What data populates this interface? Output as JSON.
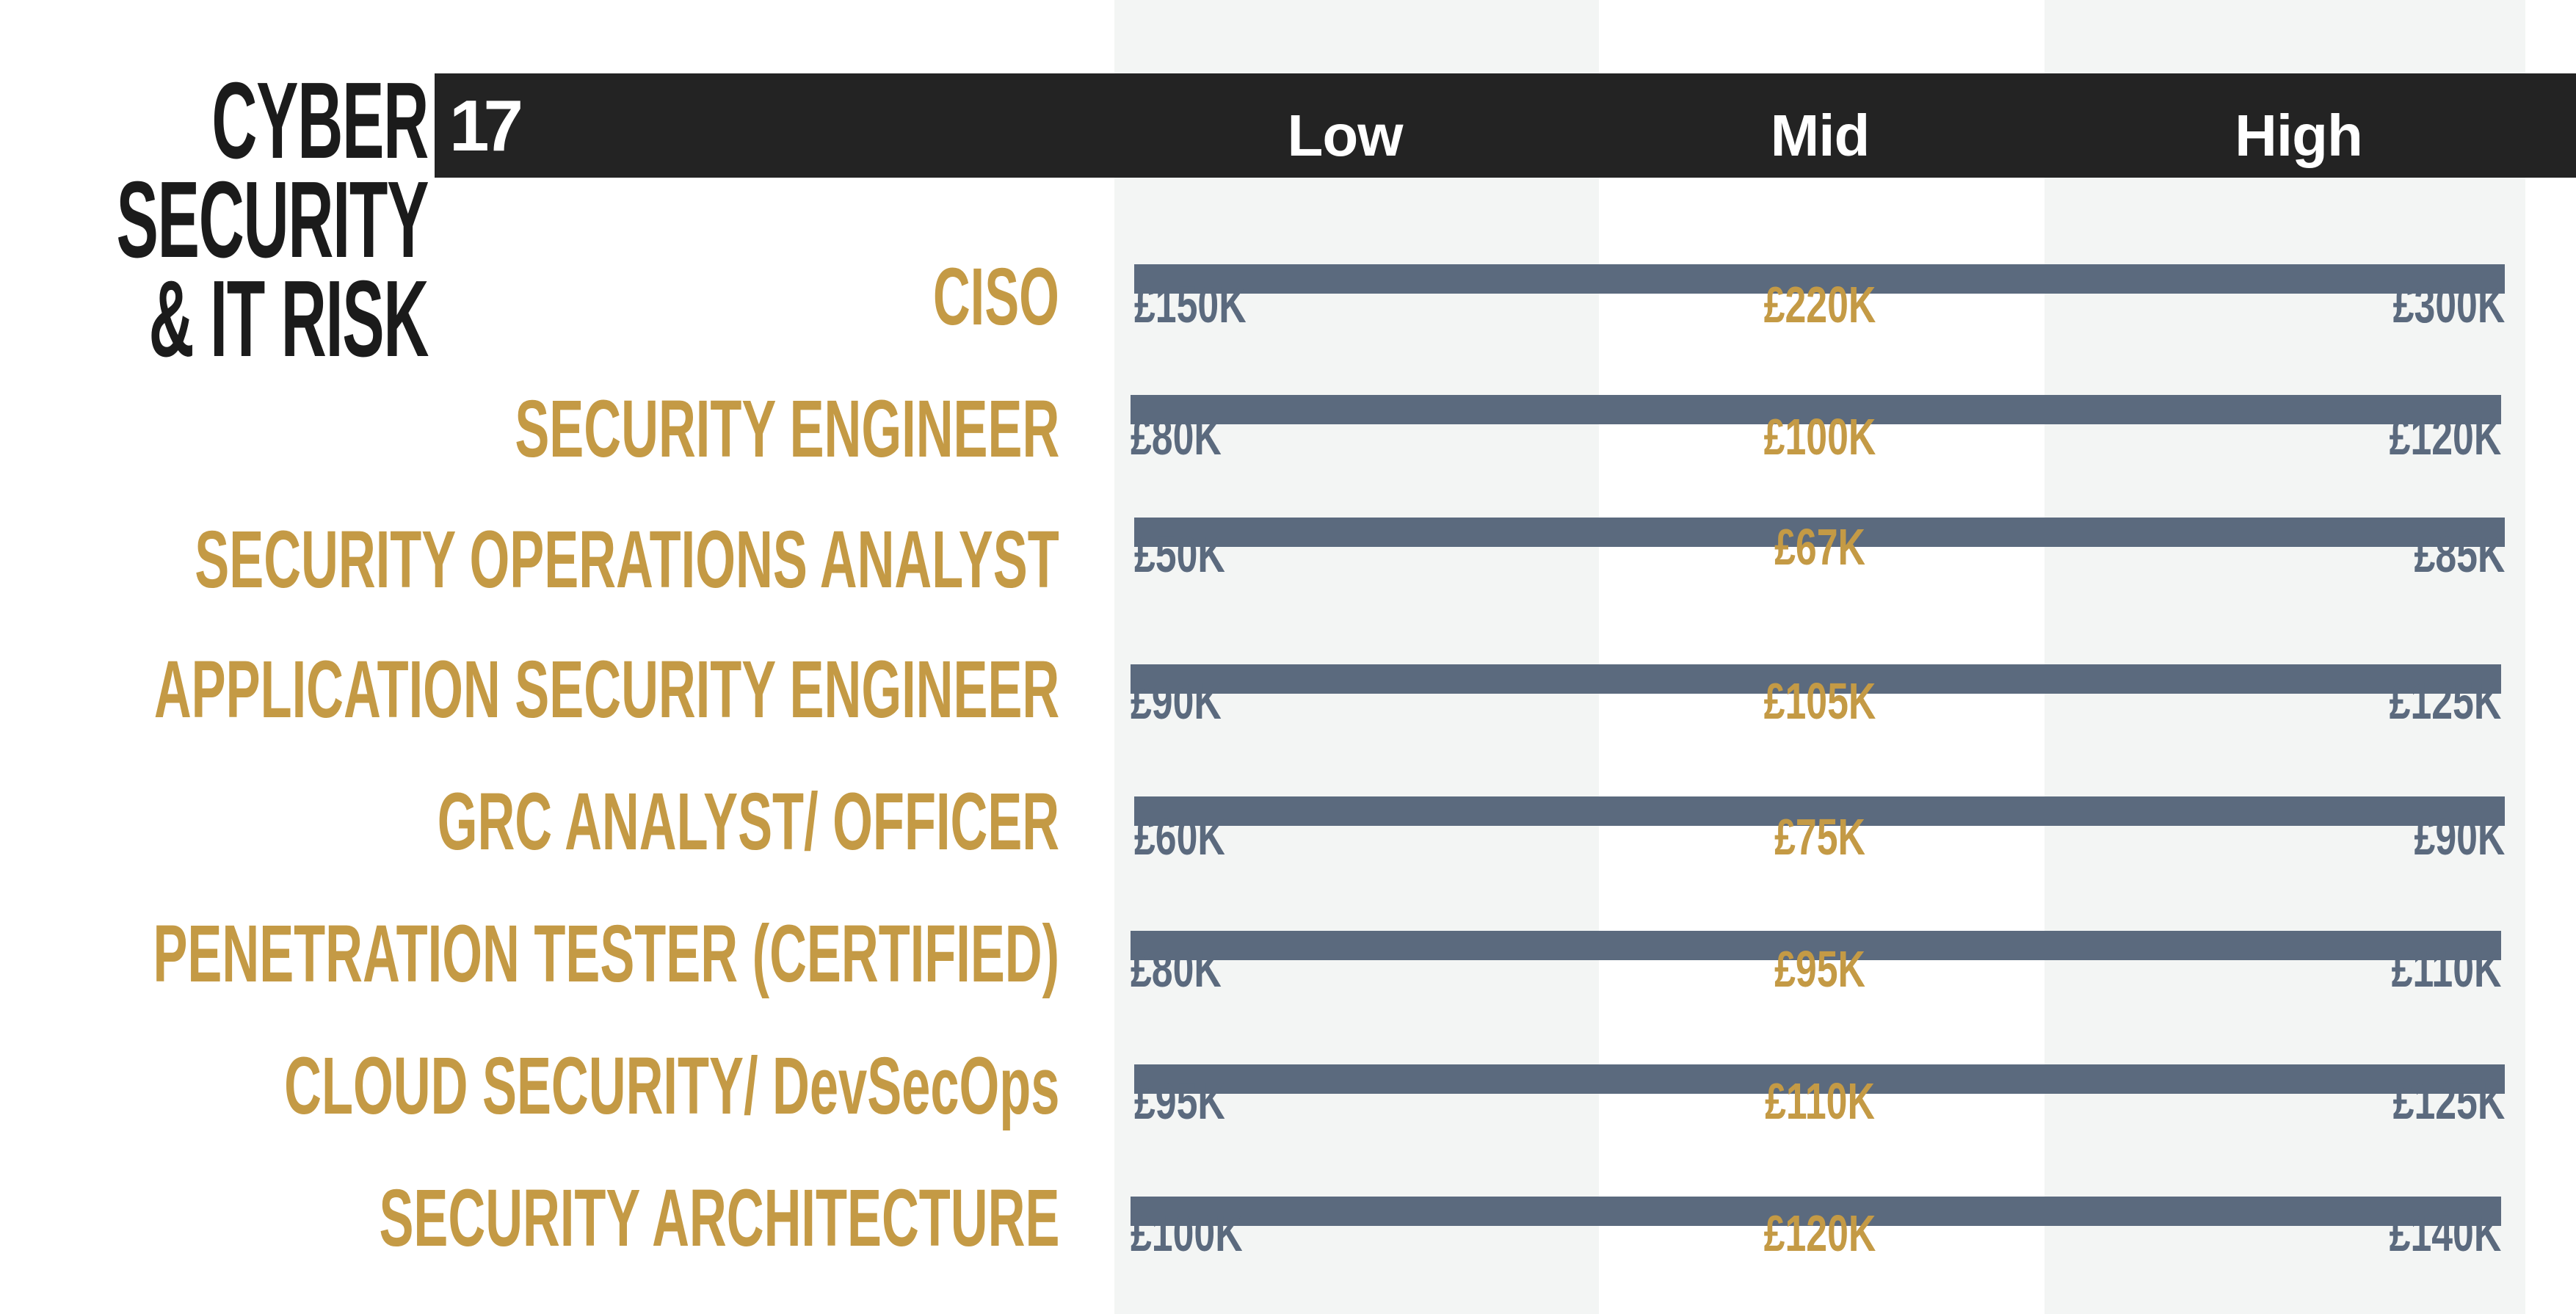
{
  "title": {
    "lines": [
      "CYBER",
      "SECURITY",
      "& IT RISK"
    ],
    "page_number": "17"
  },
  "colors": {
    "header": "#232323",
    "bar": "#5b6a7e",
    "accent": "#c49a45",
    "column_shade": "#f3f5f4"
  },
  "chart_data": {
    "type": "bar",
    "columns": [
      "Low",
      "Mid",
      "High"
    ],
    "currency_format": "£{v}K",
    "categories": [
      "CISO",
      "SECURITY ENGINEER",
      "SECURITY OPERATIONS ANALYST",
      "APPLICATION SECURITY ENGINEER",
      "GRC ANALYST/ OFFICER",
      "PENETRATION TESTER (CERTIFIED)",
      "CLOUD SECURITY/ DevSecOps",
      "SECURITY ARCHITECTURE"
    ],
    "series": [
      {
        "name": "Low",
        "values": [
          150,
          80,
          50,
          90,
          60,
          80,
          95,
          100
        ]
      },
      {
        "name": "Mid",
        "values": [
          220,
          100,
          67,
          105,
          75,
          95,
          110,
          120
        ]
      },
      {
        "name": "High",
        "values": [
          300,
          120,
          85,
          125,
          90,
          110,
          125,
          140
        ]
      }
    ],
    "value_labels": [
      [
        "£150K",
        "£220K",
        "£300K"
      ],
      [
        "£80K",
        "£100K",
        "£120K"
      ],
      [
        "£50K",
        "£67K",
        "£85K"
      ],
      [
        "£90K",
        "£105K",
        "£125K"
      ],
      [
        "£60K",
        "£75K",
        "£90K"
      ],
      [
        "£80K",
        "£95K",
        "£110K"
      ],
      [
        "£95K",
        "£110K",
        "£125K"
      ],
      [
        "£100K",
        "£120K",
        "£140K"
      ]
    ]
  }
}
